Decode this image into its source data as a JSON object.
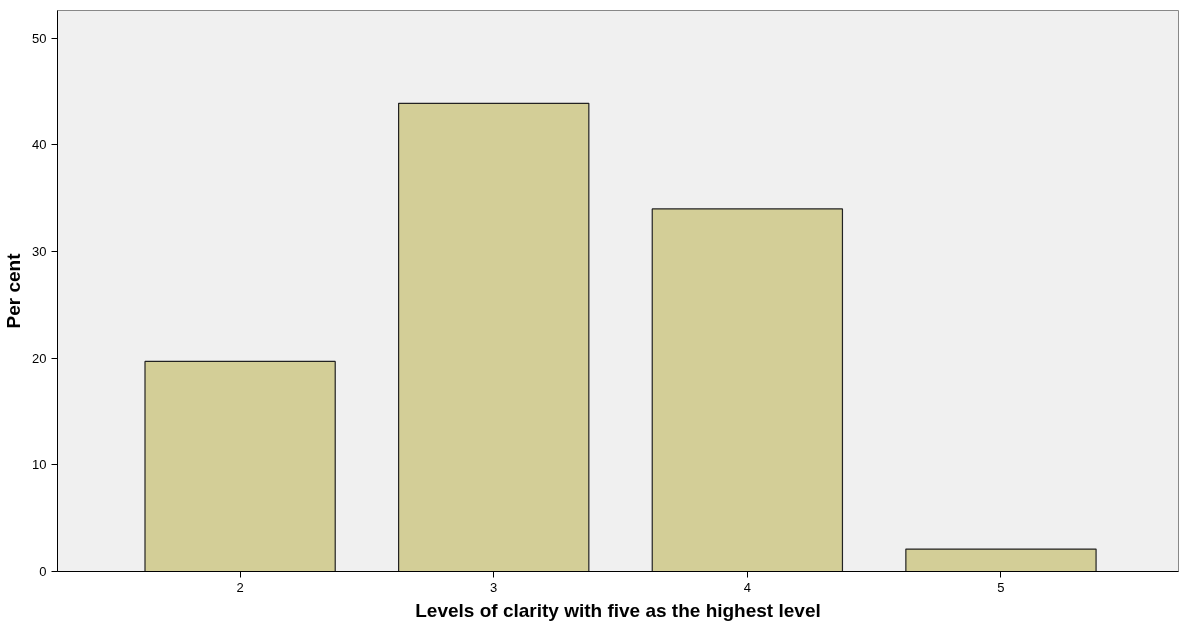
{
  "chart_data": {
    "type": "bar",
    "xlabel": "Levels of clarity with five as the highest level",
    "ylabel": "Per cent",
    "categories": [
      "2",
      "3",
      "4",
      "5"
    ],
    "values": [
      19.7,
      43.9,
      34.0,
      2.1
    ],
    "color": "#d3ce97",
    "ylim": [
      0,
      52.6
    ],
    "yticks": [
      0,
      10,
      20,
      30,
      40,
      50
    ],
    "grid": false
  }
}
